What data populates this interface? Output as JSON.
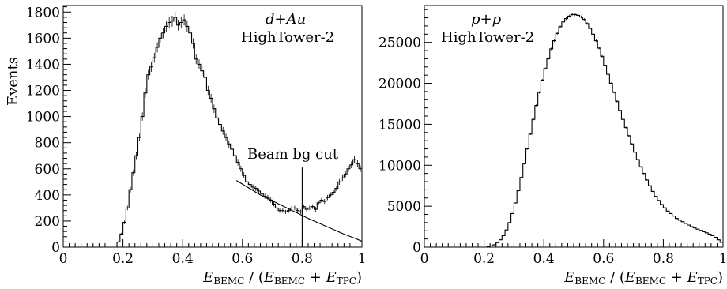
{
  "chart_data": [
    {
      "type": "histogram",
      "panel": "left",
      "annotation_lines": [
        "d+Au",
        "HighTower-2"
      ],
      "ylabel": "Events",
      "xlabel": "E_BEMC / (E_BEMC + E_TPC)",
      "xlabel_parts": {
        "e1": "E",
        "s1": "BEMC",
        "mid": " / (",
        "e2": "E",
        "s2": "BEMC",
        "plus": " + ",
        "e3": "E",
        "s3": "TPC",
        "close": ")"
      },
      "xlim": [
        0,
        1
      ],
      "ylim": [
        0,
        1850
      ],
      "xticks": [
        0,
        0.2,
        0.4,
        0.6,
        0.8,
        1
      ],
      "xtick_labels": [
        "0",
        "0.2",
        "0.4",
        "0.6",
        "0.8",
        "1"
      ],
      "yticks": [
        0,
        200,
        400,
        600,
        800,
        1000,
        1200,
        1400,
        1600,
        1800
      ],
      "ytick_labels": [
        "0",
        "200",
        "400",
        "600",
        "800",
        "1000",
        "1200",
        "1400",
        "1600",
        "1800"
      ],
      "bin_width": 0.01,
      "x": [
        0.005,
        0.015,
        0.025,
        0.035,
        0.045,
        0.055,
        0.065,
        0.075,
        0.085,
        0.095,
        0.105,
        0.115,
        0.125,
        0.135,
        0.145,
        0.155,
        0.165,
        0.175,
        0.185,
        0.195,
        0.205,
        0.215,
        0.225,
        0.235,
        0.245,
        0.255,
        0.265,
        0.275,
        0.285,
        0.295,
        0.305,
        0.315,
        0.325,
        0.335,
        0.345,
        0.355,
        0.365,
        0.375,
        0.385,
        0.395,
        0.405,
        0.415,
        0.425,
        0.435,
        0.445,
        0.455,
        0.465,
        0.475,
        0.485,
        0.495,
        0.505,
        0.515,
        0.525,
        0.535,
        0.545,
        0.555,
        0.565,
        0.575,
        0.585,
        0.595,
        0.605,
        0.615,
        0.625,
        0.635,
        0.645,
        0.655,
        0.665,
        0.675,
        0.685,
        0.695,
        0.705,
        0.715,
        0.725,
        0.735,
        0.745,
        0.755,
        0.765,
        0.775,
        0.785,
        0.795,
        0.805,
        0.815,
        0.825,
        0.835,
        0.845,
        0.855,
        0.865,
        0.875,
        0.885,
        0.895,
        0.905,
        0.915,
        0.925,
        0.935,
        0.945,
        0.955,
        0.965,
        0.975,
        0.985,
        0.995
      ],
      "values": [
        0,
        0,
        0,
        0,
        0,
        0,
        0,
        0,
        0,
        0,
        0,
        0,
        0,
        0,
        0,
        0,
        0,
        0,
        40,
        100,
        190,
        300,
        440,
        570,
        700,
        840,
        1000,
        1180,
        1320,
        1380,
        1450,
        1530,
        1600,
        1640,
        1690,
        1720,
        1730,
        1760,
        1700,
        1720,
        1740,
        1690,
        1640,
        1560,
        1440,
        1400,
        1350,
        1300,
        1200,
        1140,
        1060,
        990,
        940,
        890,
        840,
        790,
        750,
        700,
        650,
        600,
        550,
        500,
        480,
        460,
        450,
        430,
        410,
        390,
        380,
        360,
        330,
        300,
        280,
        280,
        270,
        280,
        300,
        300,
        280,
        270,
        310,
        290,
        300,
        310,
        290,
        340,
        360,
        350,
        380,
        400,
        420,
        450,
        500,
        530,
        560,
        600,
        630,
        670,
        640,
        600
      ],
      "fit_curve": {
        "x": [
          0.58,
          0.62,
          0.66,
          0.7,
          0.74,
          0.78,
          0.82,
          0.86,
          0.9,
          0.94,
          0.98,
          1.0
        ],
        "y": [
          510,
          455,
          400,
          355,
          310,
          265,
          220,
          180,
          140,
          100,
          65,
          45
        ]
      },
      "cut_line": {
        "x": 0.8,
        "y_top": 610
      },
      "cut_label": "Beam bg cut"
    },
    {
      "type": "histogram",
      "panel": "right",
      "annotation_lines": [
        "p+p",
        "HighTower-2"
      ],
      "xlabel": "E_BEMC / (E_BEMC + E_TPC)",
      "xlabel_parts": {
        "e1": "E",
        "s1": "BEMC",
        "mid": " / (",
        "e2": "E",
        "s2": "BEMC",
        "plus": " + ",
        "e3": "E",
        "s3": "TPC",
        "close": ")"
      },
      "xlim": [
        0,
        1
      ],
      "ylim": [
        0,
        29500
      ],
      "xticks": [
        0,
        0.2,
        0.4,
        0.6,
        0.8,
        1
      ],
      "xtick_labels": [
        "0",
        "0.2",
        "0.4",
        "0.6",
        "0.8",
        "1"
      ],
      "yticks": [
        0,
        5000,
        10000,
        15000,
        20000,
        25000
      ],
      "ytick_labels": [
        "0",
        "5000",
        "10000",
        "15000",
        "20000",
        "25000"
      ],
      "bin_width": 0.01,
      "x": [
        0.005,
        0.015,
        0.025,
        0.035,
        0.045,
        0.055,
        0.065,
        0.075,
        0.085,
        0.095,
        0.105,
        0.115,
        0.125,
        0.135,
        0.145,
        0.155,
        0.165,
        0.175,
        0.185,
        0.195,
        0.205,
        0.215,
        0.225,
        0.235,
        0.245,
        0.255,
        0.265,
        0.275,
        0.285,
        0.295,
        0.305,
        0.315,
        0.325,
        0.335,
        0.345,
        0.355,
        0.365,
        0.375,
        0.385,
        0.395,
        0.405,
        0.415,
        0.425,
        0.435,
        0.445,
        0.455,
        0.465,
        0.475,
        0.485,
        0.495,
        0.505,
        0.515,
        0.525,
        0.535,
        0.545,
        0.555,
        0.565,
        0.575,
        0.585,
        0.595,
        0.605,
        0.615,
        0.625,
        0.635,
        0.645,
        0.655,
        0.665,
        0.675,
        0.685,
        0.695,
        0.705,
        0.715,
        0.725,
        0.735,
        0.745,
        0.755,
        0.765,
        0.775,
        0.785,
        0.795,
        0.805,
        0.815,
        0.825,
        0.835,
        0.845,
        0.855,
        0.865,
        0.875,
        0.885,
        0.895,
        0.905,
        0.915,
        0.925,
        0.935,
        0.945,
        0.955,
        0.965,
        0.975,
        0.985,
        0.995
      ],
      "values": [
        0,
        0,
        0,
        0,
        0,
        0,
        0,
        0,
        0,
        0,
        0,
        0,
        0,
        0,
        0,
        0,
        0,
        0,
        0,
        0,
        0,
        50,
        150,
        300,
        550,
        900,
        1400,
        2100,
        3000,
        4100,
        5400,
        6900,
        8500,
        10200,
        12000,
        13800,
        15600,
        17300,
        18900,
        20400,
        21800,
        23000,
        24200,
        25200,
        26100,
        26900,
        27500,
        27900,
        28200,
        28400,
        28400,
        28300,
        28100,
        27800,
        27300,
        26700,
        26000,
        25200,
        24300,
        23300,
        22200,
        21100,
        20000,
        18900,
        17800,
        16700,
        15600,
        14600,
        13600,
        12600,
        11600,
        10700,
        9800,
        9000,
        8200,
        7500,
        6800,
        6200,
        5700,
        5200,
        4800,
        4400,
        4100,
        3800,
        3500,
        3300,
        3100,
        2900,
        2700,
        2500,
        2350,
        2200,
        2050,
        1900,
        1750,
        1600,
        1400,
        1200,
        900,
        600
      ]
    }
  ]
}
